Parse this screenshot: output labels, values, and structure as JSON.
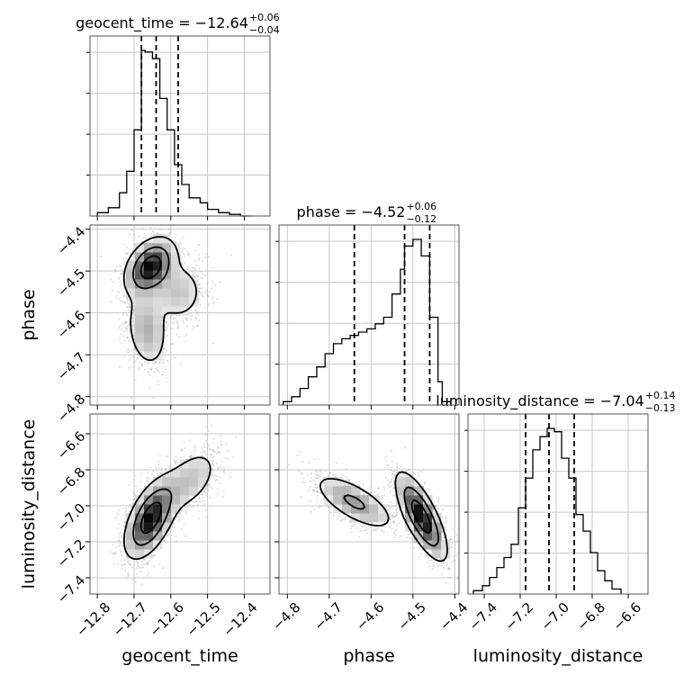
{
  "chart_data": {
    "type": "corner",
    "parameters": [
      "geocent_time",
      "phase",
      "luminosity_distance"
    ],
    "ticks": {
      "geocent_time": [
        -12.8,
        -12.7,
        -12.6,
        -12.5,
        -12.4
      ],
      "phase": [
        -4.8,
        -4.7,
        -4.6,
        -4.5,
        -4.4
      ],
      "luminosity_distance": [
        -7.4,
        -7.2,
        -7.0,
        -6.8,
        -6.6
      ]
    },
    "tick_labels": {
      "geocent_time": [
        "−12.8",
        "−12.7",
        "−12.6",
        "−12.5",
        "−12.4"
      ],
      "phase": [
        "−4.8",
        "−4.7",
        "−4.6",
        "−4.5",
        "−4.4"
      ],
      "luminosity_distance": [
        "−7.4",
        "−7.2",
        "−7.0",
        "−6.8",
        "−6.6"
      ]
    },
    "ranges": {
      "geocent_time": [
        -12.82,
        -12.33
      ],
      "phase": [
        -4.82,
        -4.39
      ],
      "luminosity_distance": [
        -7.49,
        -6.49
      ]
    },
    "titles": [
      {
        "param": "geocent_time",
        "median": "−12.64",
        "plus": "+0.06",
        "minus": "−0.04"
      },
      {
        "param": "phase",
        "median": "−4.52",
        "plus": "+0.06",
        "minus": "−0.12"
      },
      {
        "param": "luminosity_distance",
        "median": "−7.04",
        "plus": "+0.14",
        "minus": "−0.13"
      }
    ],
    "quantiles": {
      "geocent_time": [
        -12.68,
        -12.64,
        -12.58
      ],
      "phase": [
        -4.64,
        -4.52,
        -4.46
      ],
      "luminosity_distance": [
        -7.17,
        -7.04,
        -6.9
      ]
    },
    "histograms": {
      "geocent_time": {
        "edges": [
          -12.8,
          -12.77,
          -12.74,
          -12.72,
          -12.7,
          -12.68,
          -12.67,
          -12.65,
          -12.63,
          -12.61,
          -12.59,
          -12.57,
          -12.55,
          -12.52,
          -12.5,
          -12.47,
          -12.44,
          -12.41,
          -12.38
        ],
        "counts": [
          2,
          5,
          14,
          27,
          52,
          100,
          99,
          95,
          71,
          52,
          31,
          19,
          11,
          8,
          4,
          2,
          1,
          0
        ]
      },
      "phase": {
        "edges": [
          -4.81,
          -4.79,
          -4.77,
          -4.75,
          -4.73,
          -4.71,
          -4.69,
          -4.67,
          -4.65,
          -4.63,
          -4.61,
          -4.59,
          -4.57,
          -4.55,
          -4.53,
          -4.52,
          -4.5,
          -4.48,
          -4.46,
          -4.44,
          -4.43,
          -4.41
        ],
        "counts": [
          2,
          5,
          10,
          17,
          23,
          31,
          37,
          40,
          42,
          44,
          46,
          49,
          53,
          67,
          82,
          96,
          100,
          90,
          53,
          14,
          2
        ]
      },
      "luminosity_distance": {
        "edges": [
          -7.46,
          -7.41,
          -7.37,
          -7.33,
          -7.29,
          -7.25,
          -7.21,
          -7.17,
          -7.13,
          -7.09,
          -7.05,
          -7.01,
          -6.97,
          -6.93,
          -6.89,
          -6.85,
          -6.81,
          -6.77,
          -6.73,
          -6.69,
          -6.64
        ],
        "counts": [
          2,
          5,
          10,
          16,
          22,
          30,
          52,
          70,
          87,
          95,
          100,
          98,
          82,
          70,
          48,
          38,
          25,
          14,
          8,
          3
        ]
      }
    },
    "density": {
      "phase_vs_geocent_time": {
        "x": "geocent_time",
        "y": "phase",
        "clusters": [
          {
            "x": -12.655,
            "y": -4.49,
            "sx": 0.035,
            "sy": 0.035,
            "rho": 0.35,
            "w": 0.55
          },
          {
            "x": -12.58,
            "y": -4.55,
            "sx": 0.04,
            "sy": 0.04,
            "rho": 0.0,
            "w": 0.2
          },
          {
            "x": -12.665,
            "y": -4.64,
            "sx": 0.03,
            "sy": 0.05,
            "rho": -0.2,
            "w": 0.25
          }
        ],
        "contour_levels": 3
      },
      "luminosity_distance_vs_geocent_time": {
        "x": "geocent_time",
        "y": "luminosity_distance",
        "clusters": [
          {
            "x": -12.655,
            "y": -7.07,
            "sx": 0.035,
            "sy": 0.11,
            "rho": 0.55,
            "w": 0.75
          },
          {
            "x": -12.55,
            "y": -6.86,
            "sx": 0.045,
            "sy": 0.1,
            "rho": 0.5,
            "w": 0.25
          }
        ],
        "contour_levels": 3
      },
      "luminosity_distance_vs_phase": {
        "x": "phase",
        "y": "luminosity_distance",
        "clusters": [
          {
            "x": -4.48,
            "y": -7.06,
            "sx": 0.03,
            "sy": 0.12,
            "rho": -0.75,
            "w": 0.65
          },
          {
            "x": -4.64,
            "y": -6.98,
            "sx": 0.05,
            "sy": 0.08,
            "rho": -0.7,
            "w": 0.35
          }
        ],
        "contour_levels": 3
      }
    },
    "colors": {
      "line": "#000000",
      "grid": "#c8c8c8",
      "scatter": "#9a9a9a",
      "frame": "#555555"
    }
  }
}
